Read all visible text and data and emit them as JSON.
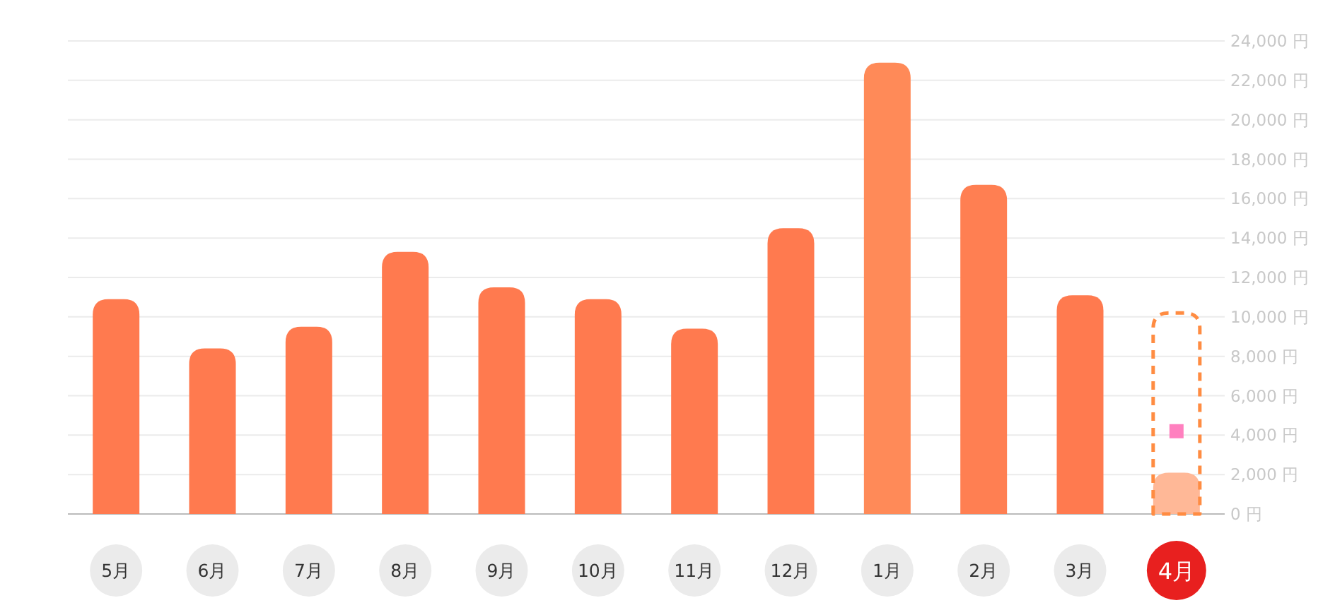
{
  "chart_data": {
    "type": "bar",
    "categories": [
      "5月",
      "6月",
      "7月",
      "8月",
      "9月",
      "10月",
      "11月",
      "12月",
      "1月",
      "2月",
      "3月",
      "4月"
    ],
    "series": [
      {
        "colors": [
          "#ff7a4f",
          "#ff7a4f",
          "#ff7a4f",
          "#ff7a4f",
          "#ff7a4f",
          "#ff7a4f",
          "#ff7a4f",
          "#ff7a4f",
          "#ff8a58",
          "#ff7f52",
          "#ff7a4f",
          "#ffb897"
        ],
        "values": [
          10900,
          8400,
          9500,
          13300,
          11500,
          10900,
          9400,
          14500,
          22900,
          16700,
          11100,
          2100
        ]
      },
      {
        "color": "#ff8c42",
        "line_style": "dashed",
        "values": [
          null,
          null,
          null,
          null,
          null,
          null,
          null,
          null,
          null,
          null,
          null,
          10200
        ]
      },
      {
        "type": "scatter",
        "marker": "square",
        "color": "#ff80bf",
        "values": [
          null,
          null,
          null,
          null,
          null,
          null,
          null,
          null,
          null,
          null,
          null,
          4200
        ]
      }
    ],
    "ylim": [
      0,
      24000
    ],
    "yticks": [
      {
        "value": 0,
        "label": "0 円"
      },
      {
        "value": 2000,
        "label": "2,000 円"
      },
      {
        "value": 4000,
        "label": "4,000 円"
      },
      {
        "value": 6000,
        "label": "6,000 円"
      },
      {
        "value": 8000,
        "label": "8,000 円"
      },
      {
        "value": 10000,
        "label": "10,000 円"
      },
      {
        "value": 12000,
        "label": "12,000 円"
      },
      {
        "value": 14000,
        "label": "14,000 円"
      },
      {
        "value": 16000,
        "label": "16,000 円"
      },
      {
        "value": 18000,
        "label": "18,000 円"
      },
      {
        "value": 20000,
        "label": "20,000 円"
      },
      {
        "value": 22000,
        "label": "22,000 円"
      },
      {
        "value": 24000,
        "label": "24,000 円"
      }
    ],
    "grid": "y"
  }
}
